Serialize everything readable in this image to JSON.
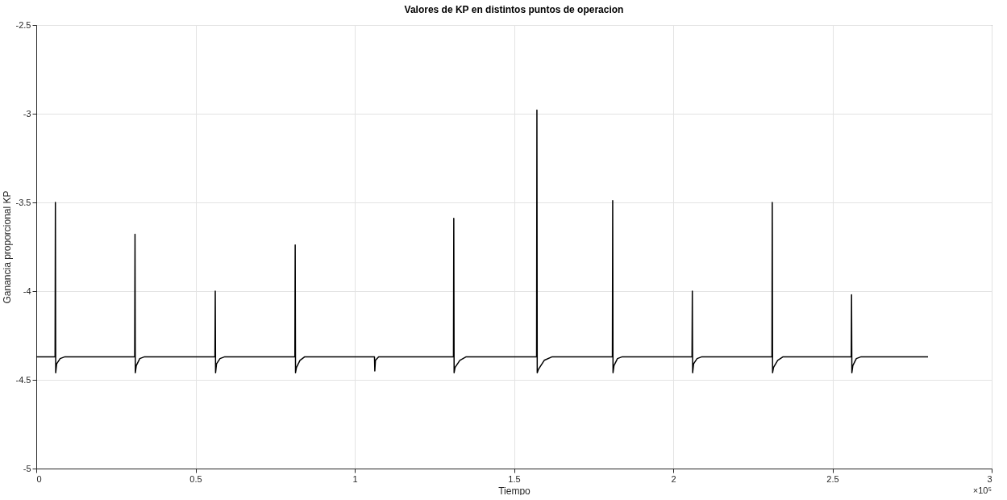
{
  "chart_data": {
    "type": "line",
    "title": "Valores de KP en distintos puntos de operacion",
    "xlabel": "Tiempo",
    "ylabel": "Ganancia proporcional KP",
    "annotations": [
      "×10⁵"
    ],
    "xlim": [
      0,
      3
    ],
    "xticks": [
      0,
      0.5,
      1,
      1.5,
      2,
      2.5,
      3
    ],
    "ylim": [
      -5,
      -2.5
    ],
    "yticks": [
      -5,
      -4.5,
      -4,
      -3.5,
      -3,
      -2.5
    ],
    "grid": true,
    "x": [
      0,
      0.059,
      0.06,
      0.061,
      0.064,
      0.075,
      0.09,
      0.309,
      0.31,
      0.311,
      0.314,
      0.325,
      0.34,
      0.561,
      0.562,
      0.563,
      0.566,
      0.577,
      0.592,
      0.812,
      0.813,
      0.814,
      0.817,
      0.828,
      0.843,
      1.062,
      1.063,
      1.065,
      1.075,
      1.31,
      1.311,
      1.312,
      1.315,
      1.33,
      1.35,
      1.571,
      1.572,
      1.573,
      1.577,
      1.595,
      1.62,
      1.809,
      1.81,
      1.811,
      1.814,
      1.825,
      1.84,
      2.059,
      2.06,
      2.061,
      2.064,
      2.075,
      2.09,
      2.31,
      2.311,
      2.312,
      2.315,
      2.328,
      2.345,
      2.559,
      2.56,
      2.561,
      2.564,
      2.575,
      2.59,
      2.8
    ],
    "series": [
      {
        "color": "#000000",
        "values": [
          -4.37,
          -4.37,
          -3.5,
          -4.46,
          -4.41,
          -4.38,
          -4.37,
          -4.37,
          -3.68,
          -4.46,
          -4.42,
          -4.38,
          -4.37,
          -4.37,
          -4.0,
          -4.46,
          -4.41,
          -4.38,
          -4.37,
          -4.37,
          -3.74,
          -4.46,
          -4.43,
          -4.39,
          -4.37,
          -4.37,
          -4.45,
          -4.39,
          -4.37,
          -4.37,
          -3.59,
          -4.46,
          -4.43,
          -4.39,
          -4.37,
          -4.37,
          -2.98,
          -4.46,
          -4.44,
          -4.39,
          -4.37,
          -4.37,
          -3.49,
          -4.46,
          -4.42,
          -4.38,
          -4.37,
          -4.37,
          -4.0,
          -4.46,
          -4.41,
          -4.38,
          -4.37,
          -4.37,
          -3.5,
          -4.46,
          -4.43,
          -4.39,
          -4.37,
          -4.37,
          -4.02,
          -4.46,
          -4.42,
          -4.38,
          -4.37,
          -4.37
        ]
      }
    ]
  }
}
